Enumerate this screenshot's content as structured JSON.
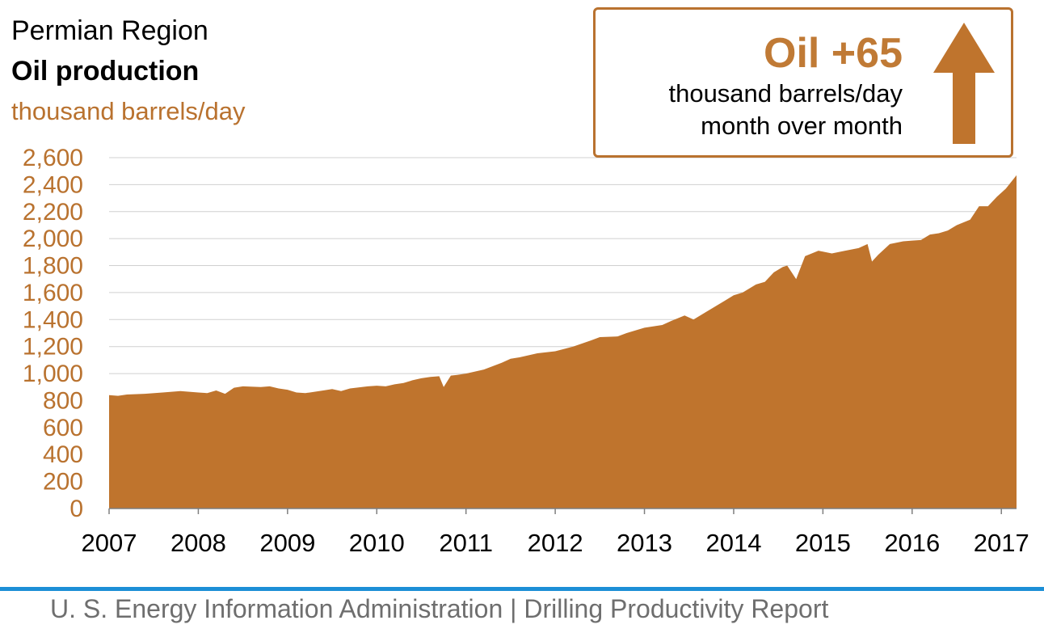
{
  "header": {
    "region": "Permian Region",
    "metric": "Oil production",
    "unit": "thousand barrels/day"
  },
  "callout": {
    "headline": "Oil +65",
    "line1": "thousand barrels/day",
    "line2": "month over month",
    "direction": "up-arrow-icon"
  },
  "colors": {
    "area": "#bf742d",
    "accent_text": "#b9722f",
    "footer_rule": "#1c8fd6"
  },
  "footer": {
    "text": "U. S. Energy Information Administration   |   Drilling Productivity Report"
  },
  "chart_data": {
    "type": "area",
    "title": "Oil production",
    "ylabel": "thousand barrels/day",
    "ylim": [
      0,
      2600
    ],
    "yticks": [
      0,
      200,
      400,
      600,
      800,
      1000,
      1200,
      1400,
      1600,
      1800,
      2000,
      2200,
      2400,
      2600
    ],
    "ytick_labels": [
      "0",
      "200",
      "400",
      "600",
      "800",
      "1,000",
      "1,200",
      "1,400",
      "1,600",
      "1,800",
      "2,000",
      "2,200",
      "2,400",
      "2,600"
    ],
    "xlim": [
      2007.0,
      2017.17
    ],
    "xticks": [
      2007,
      2008,
      2009,
      2010,
      2011,
      2012,
      2013,
      2014,
      2015,
      2016,
      2017
    ],
    "xtick_labels": [
      "2007",
      "2008",
      "2009",
      "2010",
      "2011",
      "2012",
      "2013",
      "2014",
      "2015",
      "2016",
      "2017"
    ],
    "grid": true,
    "x": [
      2007.0,
      2007.1,
      2007.2,
      2007.4,
      2007.6,
      2007.8,
      2008.0,
      2008.1,
      2008.2,
      2008.3,
      2008.4,
      2008.5,
      2008.7,
      2008.8,
      2008.9,
      2009.0,
      2009.1,
      2009.2,
      2009.4,
      2009.5,
      2009.6,
      2009.7,
      2009.9,
      2010.0,
      2010.1,
      2010.2,
      2010.3,
      2010.4,
      2010.5,
      2010.6,
      2010.7,
      2010.75,
      2010.83,
      2010.9,
      2011.0,
      2011.2,
      2011.4,
      2011.5,
      2011.6,
      2011.8,
      2012.0,
      2012.2,
      2012.4,
      2012.5,
      2012.7,
      2012.8,
      2013.0,
      2013.2,
      2013.3,
      2013.45,
      2013.55,
      2013.7,
      2013.9,
      2014.0,
      2014.1,
      2014.25,
      2014.35,
      2014.45,
      2014.55,
      2014.6,
      2014.7,
      2014.8,
      2014.95,
      2015.1,
      2015.25,
      2015.4,
      2015.5,
      2015.55,
      2015.62,
      2015.75,
      2015.9,
      2016.0,
      2016.1,
      2016.2,
      2016.3,
      2016.4,
      2016.5,
      2016.65,
      2016.75,
      2016.85,
      2016.95,
      2017.05,
      2017.17
    ],
    "values": [
      840,
      835,
      845,
      850,
      860,
      870,
      860,
      855,
      875,
      850,
      895,
      905,
      900,
      905,
      890,
      880,
      860,
      855,
      875,
      885,
      870,
      890,
      905,
      910,
      905,
      920,
      930,
      950,
      965,
      975,
      980,
      900,
      985,
      990,
      1000,
      1030,
      1080,
      1110,
      1120,
      1150,
      1165,
      1200,
      1245,
      1270,
      1275,
      1300,
      1340,
      1360,
      1390,
      1430,
      1400,
      1460,
      1540,
      1580,
      1600,
      1660,
      1680,
      1750,
      1790,
      1800,
      1700,
      1870,
      1910,
      1890,
      1910,
      1930,
      1960,
      1830,
      1880,
      1960,
      1980,
      1985,
      1990,
      2030,
      2040,
      2060,
      2100,
      2140,
      2240,
      2240,
      2310,
      2370,
      2470
    ]
  }
}
